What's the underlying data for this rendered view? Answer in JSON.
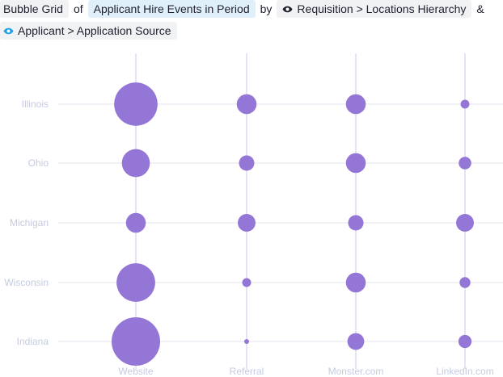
{
  "query": {
    "chart_type_label": "Bubble Grid",
    "of_label": "of",
    "measure_label": "Applicant Hire Events in Period",
    "by_label": "by",
    "dimension_1_label": "Requisition > Locations Hierarchy",
    "and_label": "&",
    "dimension_2_label": "Applicant > Application Source",
    "eye_icon": "eye-icon",
    "eye_icon_color_1": "#1f1f2e",
    "eye_icon_color_2": "#1ea0e6"
  },
  "chart_data": {
    "type": "bubble-grid",
    "title": "",
    "x_categories": [
      "Website",
      "Referral",
      "Monster.com",
      "LinkedIn.com"
    ],
    "y_categories": [
      "Illinois",
      "Ohio",
      "Michigan",
      "Wisconsin",
      "Indiana"
    ],
    "values": [
      [
        24,
        5,
        5,
        1
      ],
      [
        10,
        3,
        5,
        2
      ],
      [
        5,
        4,
        3,
        4
      ],
      [
        19,
        1,
        5,
        1.5
      ],
      [
        30,
        0.3,
        3.6,
        2.2
      ]
    ],
    "bubble_color": "#9476d6",
    "grid": true,
    "axis_label_color": "#c5cbe0",
    "grid_color": "#e4e4ee",
    "x_axis_color": "#c9c9e6"
  }
}
